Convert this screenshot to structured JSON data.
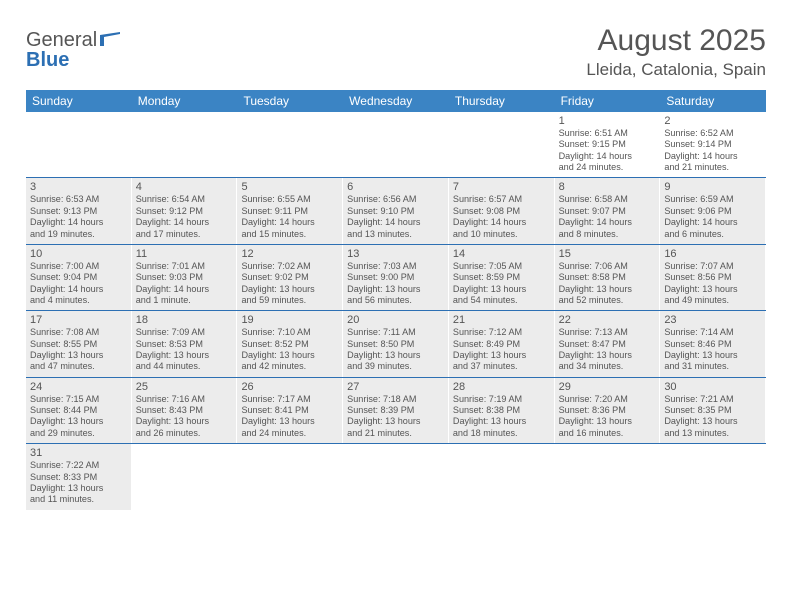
{
  "logo": {
    "line1": "General",
    "line2": "Blue"
  },
  "title": "August 2025",
  "location": "Lleida, Catalonia, Spain",
  "colors": {
    "header_bg": "#3b84c4",
    "header_text": "#ffffff",
    "shade": "#ececec",
    "border": "#2c6fb3",
    "text": "#555555",
    "logo_blue": "#2c6fb3"
  },
  "day_names": [
    "Sunday",
    "Monday",
    "Tuesday",
    "Wednesday",
    "Thursday",
    "Friday",
    "Saturday"
  ],
  "weeks": [
    [
      {
        "empty": true,
        "shaded": false
      },
      {
        "empty": true,
        "shaded": false
      },
      {
        "empty": true,
        "shaded": false
      },
      {
        "empty": true,
        "shaded": false
      },
      {
        "empty": true,
        "shaded": false
      },
      {
        "num": "1",
        "shaded": false,
        "sunrise": "Sunrise: 6:51 AM",
        "sunset": "Sunset: 9:15 PM",
        "day1": "Daylight: 14 hours",
        "day2": "and 24 minutes."
      },
      {
        "num": "2",
        "shaded": false,
        "sunrise": "Sunrise: 6:52 AM",
        "sunset": "Sunset: 9:14 PM",
        "day1": "Daylight: 14 hours",
        "day2": "and 21 minutes."
      }
    ],
    [
      {
        "num": "3",
        "shaded": true,
        "sunrise": "Sunrise: 6:53 AM",
        "sunset": "Sunset: 9:13 PM",
        "day1": "Daylight: 14 hours",
        "day2": "and 19 minutes."
      },
      {
        "num": "4",
        "shaded": true,
        "sunrise": "Sunrise: 6:54 AM",
        "sunset": "Sunset: 9:12 PM",
        "day1": "Daylight: 14 hours",
        "day2": "and 17 minutes."
      },
      {
        "num": "5",
        "shaded": true,
        "sunrise": "Sunrise: 6:55 AM",
        "sunset": "Sunset: 9:11 PM",
        "day1": "Daylight: 14 hours",
        "day2": "and 15 minutes."
      },
      {
        "num": "6",
        "shaded": true,
        "sunrise": "Sunrise: 6:56 AM",
        "sunset": "Sunset: 9:10 PM",
        "day1": "Daylight: 14 hours",
        "day2": "and 13 minutes."
      },
      {
        "num": "7",
        "shaded": true,
        "sunrise": "Sunrise: 6:57 AM",
        "sunset": "Sunset: 9:08 PM",
        "day1": "Daylight: 14 hours",
        "day2": "and 10 minutes."
      },
      {
        "num": "8",
        "shaded": true,
        "sunrise": "Sunrise: 6:58 AM",
        "sunset": "Sunset: 9:07 PM",
        "day1": "Daylight: 14 hours",
        "day2": "and 8 minutes."
      },
      {
        "num": "9",
        "shaded": true,
        "sunrise": "Sunrise: 6:59 AM",
        "sunset": "Sunset: 9:06 PM",
        "day1": "Daylight: 14 hours",
        "day2": "and 6 minutes."
      }
    ],
    [
      {
        "num": "10",
        "shaded": true,
        "sunrise": "Sunrise: 7:00 AM",
        "sunset": "Sunset: 9:04 PM",
        "day1": "Daylight: 14 hours",
        "day2": "and 4 minutes."
      },
      {
        "num": "11",
        "shaded": true,
        "sunrise": "Sunrise: 7:01 AM",
        "sunset": "Sunset: 9:03 PM",
        "day1": "Daylight: 14 hours",
        "day2": "and 1 minute."
      },
      {
        "num": "12",
        "shaded": true,
        "sunrise": "Sunrise: 7:02 AM",
        "sunset": "Sunset: 9:02 PM",
        "day1": "Daylight: 13 hours",
        "day2": "and 59 minutes."
      },
      {
        "num": "13",
        "shaded": true,
        "sunrise": "Sunrise: 7:03 AM",
        "sunset": "Sunset: 9:00 PM",
        "day1": "Daylight: 13 hours",
        "day2": "and 56 minutes."
      },
      {
        "num": "14",
        "shaded": true,
        "sunrise": "Sunrise: 7:05 AM",
        "sunset": "Sunset: 8:59 PM",
        "day1": "Daylight: 13 hours",
        "day2": "and 54 minutes."
      },
      {
        "num": "15",
        "shaded": true,
        "sunrise": "Sunrise: 7:06 AM",
        "sunset": "Sunset: 8:58 PM",
        "day1": "Daylight: 13 hours",
        "day2": "and 52 minutes."
      },
      {
        "num": "16",
        "shaded": true,
        "sunrise": "Sunrise: 7:07 AM",
        "sunset": "Sunset: 8:56 PM",
        "day1": "Daylight: 13 hours",
        "day2": "and 49 minutes."
      }
    ],
    [
      {
        "num": "17",
        "shaded": true,
        "sunrise": "Sunrise: 7:08 AM",
        "sunset": "Sunset: 8:55 PM",
        "day1": "Daylight: 13 hours",
        "day2": "and 47 minutes."
      },
      {
        "num": "18",
        "shaded": true,
        "sunrise": "Sunrise: 7:09 AM",
        "sunset": "Sunset: 8:53 PM",
        "day1": "Daylight: 13 hours",
        "day2": "and 44 minutes."
      },
      {
        "num": "19",
        "shaded": true,
        "sunrise": "Sunrise: 7:10 AM",
        "sunset": "Sunset: 8:52 PM",
        "day1": "Daylight: 13 hours",
        "day2": "and 42 minutes."
      },
      {
        "num": "20",
        "shaded": true,
        "sunrise": "Sunrise: 7:11 AM",
        "sunset": "Sunset: 8:50 PM",
        "day1": "Daylight: 13 hours",
        "day2": "and 39 minutes."
      },
      {
        "num": "21",
        "shaded": true,
        "sunrise": "Sunrise: 7:12 AM",
        "sunset": "Sunset: 8:49 PM",
        "day1": "Daylight: 13 hours",
        "day2": "and 37 minutes."
      },
      {
        "num": "22",
        "shaded": true,
        "sunrise": "Sunrise: 7:13 AM",
        "sunset": "Sunset: 8:47 PM",
        "day1": "Daylight: 13 hours",
        "day2": "and 34 minutes."
      },
      {
        "num": "23",
        "shaded": true,
        "sunrise": "Sunrise: 7:14 AM",
        "sunset": "Sunset: 8:46 PM",
        "day1": "Daylight: 13 hours",
        "day2": "and 31 minutes."
      }
    ],
    [
      {
        "num": "24",
        "shaded": true,
        "sunrise": "Sunrise: 7:15 AM",
        "sunset": "Sunset: 8:44 PM",
        "day1": "Daylight: 13 hours",
        "day2": "and 29 minutes."
      },
      {
        "num": "25",
        "shaded": true,
        "sunrise": "Sunrise: 7:16 AM",
        "sunset": "Sunset: 8:43 PM",
        "day1": "Daylight: 13 hours",
        "day2": "and 26 minutes."
      },
      {
        "num": "26",
        "shaded": true,
        "sunrise": "Sunrise: 7:17 AM",
        "sunset": "Sunset: 8:41 PM",
        "day1": "Daylight: 13 hours",
        "day2": "and 24 minutes."
      },
      {
        "num": "27",
        "shaded": true,
        "sunrise": "Sunrise: 7:18 AM",
        "sunset": "Sunset: 8:39 PM",
        "day1": "Daylight: 13 hours",
        "day2": "and 21 minutes."
      },
      {
        "num": "28",
        "shaded": true,
        "sunrise": "Sunrise: 7:19 AM",
        "sunset": "Sunset: 8:38 PM",
        "day1": "Daylight: 13 hours",
        "day2": "and 18 minutes."
      },
      {
        "num": "29",
        "shaded": true,
        "sunrise": "Sunrise: 7:20 AM",
        "sunset": "Sunset: 8:36 PM",
        "day1": "Daylight: 13 hours",
        "day2": "and 16 minutes."
      },
      {
        "num": "30",
        "shaded": true,
        "sunrise": "Sunrise: 7:21 AM",
        "sunset": "Sunset: 8:35 PM",
        "day1": "Daylight: 13 hours",
        "day2": "and 13 minutes."
      }
    ],
    [
      {
        "num": "31",
        "shaded": true,
        "sunrise": "Sunrise: 7:22 AM",
        "sunset": "Sunset: 8:33 PM",
        "day1": "Daylight: 13 hours",
        "day2": "and 11 minutes."
      },
      {
        "empty": true,
        "shaded": false
      },
      {
        "empty": true,
        "shaded": false
      },
      {
        "empty": true,
        "shaded": false
      },
      {
        "empty": true,
        "shaded": false
      },
      {
        "empty": true,
        "shaded": false
      },
      {
        "empty": true,
        "shaded": false
      }
    ]
  ]
}
